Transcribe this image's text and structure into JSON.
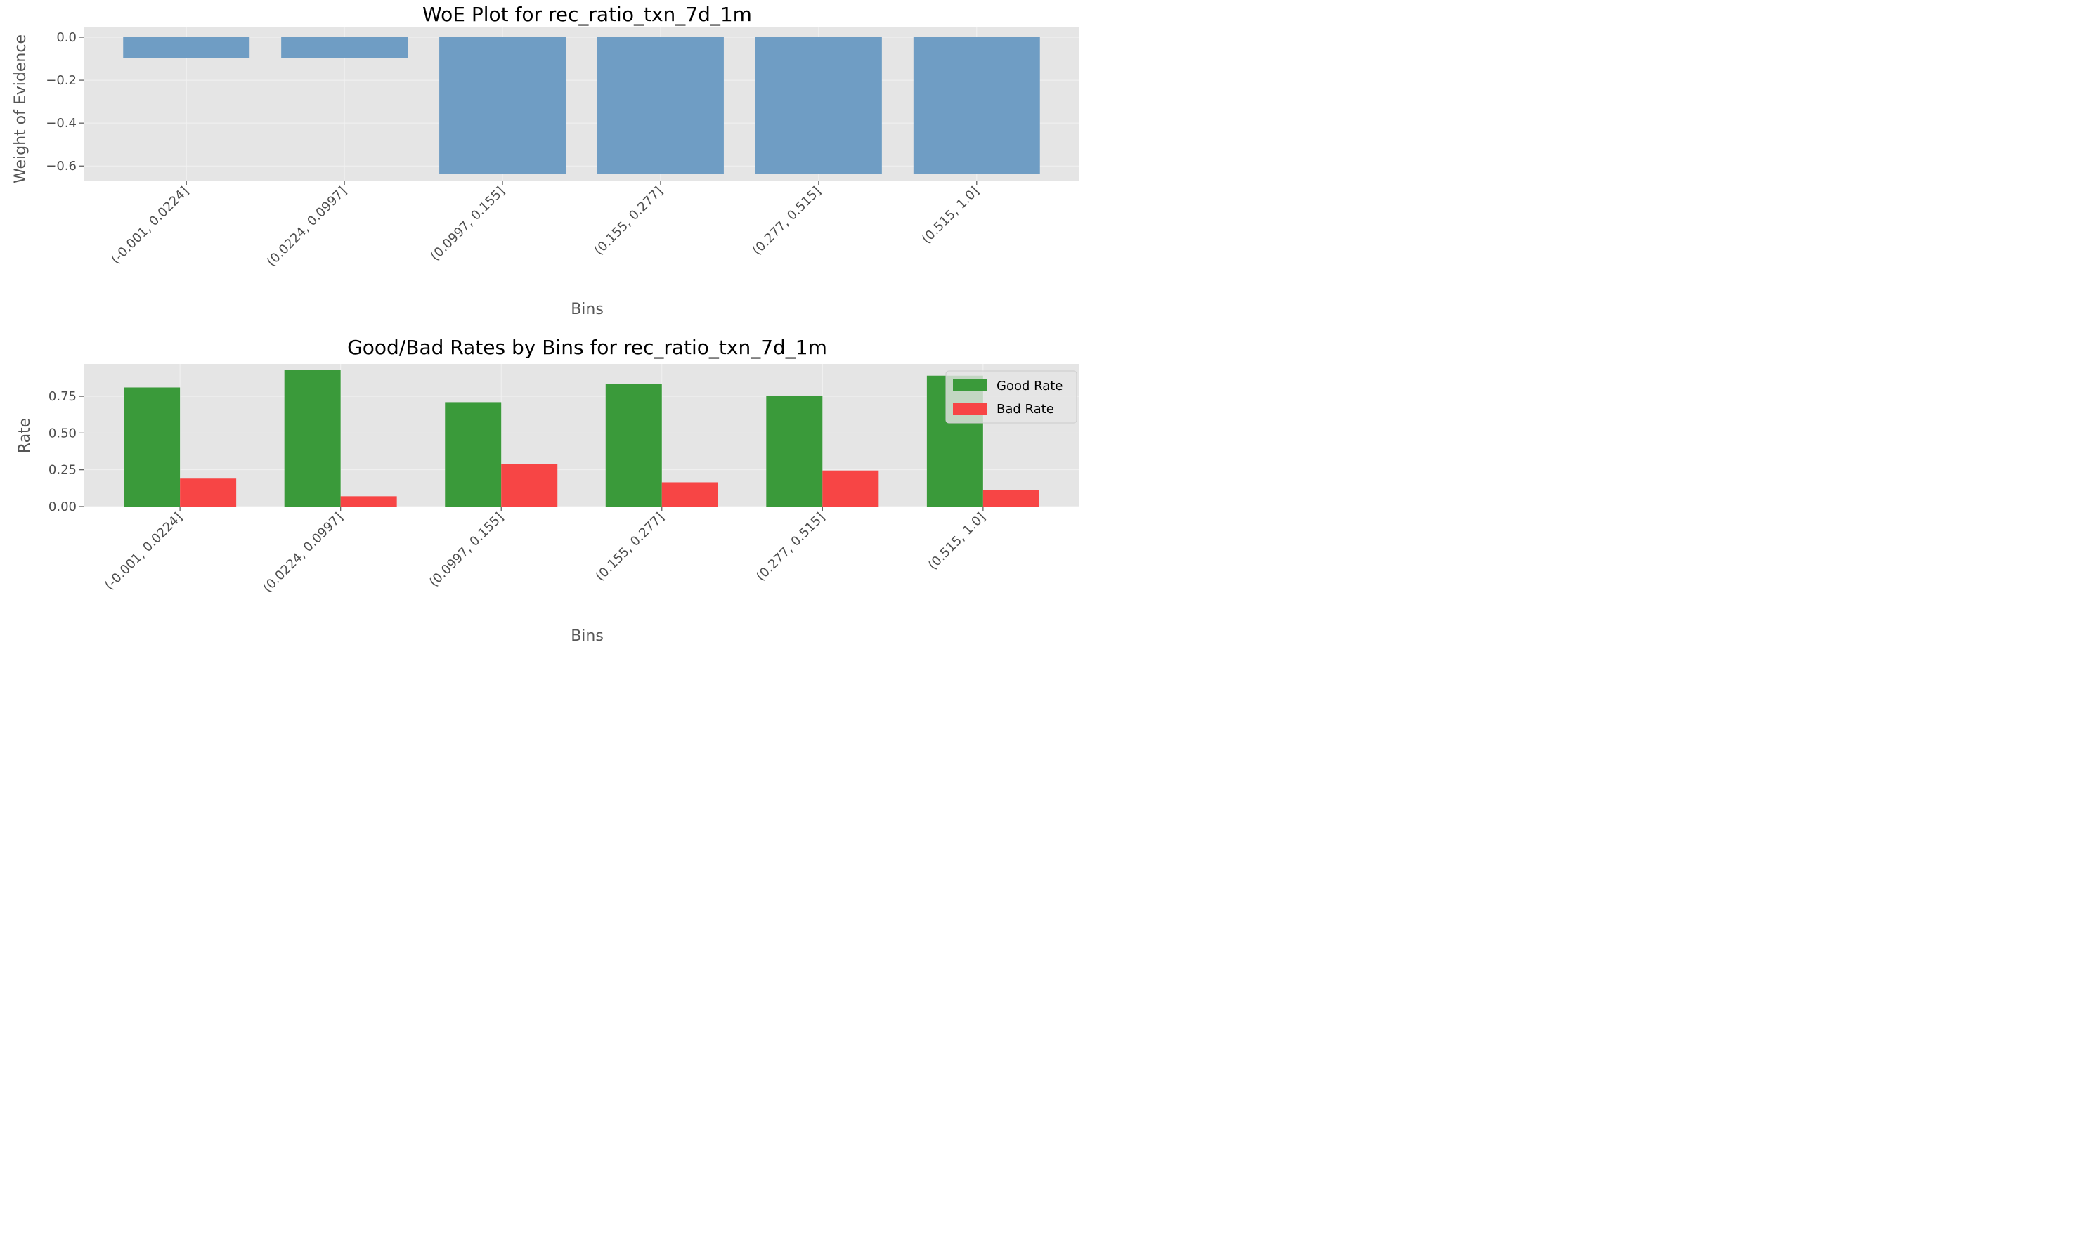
{
  "chart_data": [
    {
      "type": "bar",
      "title": "WoE Plot for rec_ratio_txn_7d_1m",
      "xlabel": "Bins",
      "ylabel": "Weight of Evidence",
      "categories": [
        "(-0.001, 0.0224]",
        "(0.0224, 0.0997]",
        "(0.0997, 0.155]",
        "(0.155, 0.277]",
        "(0.277, 0.515]",
        "(0.515, 1.0]"
      ],
      "values": [
        -0.095,
        -0.095,
        -0.637,
        -0.637,
        -0.637,
        -0.637
      ],
      "ylim": [
        -0.668,
        0.0
      ],
      "yticks": [
        0.0,
        -0.2,
        -0.4,
        -0.6
      ],
      "ytick_labels": [
        "0.0",
        "−0.2",
        "−0.4",
        "−0.6"
      ],
      "color": "#6f9dc4",
      "grid": true
    },
    {
      "type": "bar",
      "title": "Good/Bad Rates by Bins for rec_ratio_txn_7d_1m",
      "xlabel": "Bins",
      "ylabel": "Rate",
      "categories": [
        "(-0.001, 0.0224]",
        "(0.0224, 0.0997]",
        "(0.0997, 0.155]",
        "(0.155, 0.277]",
        "(0.277, 0.515]",
        "(0.515, 1.0]"
      ],
      "series": [
        {
          "name": "Good Rate",
          "values": [
            0.81,
            0.93,
            0.71,
            0.835,
            0.755,
            0.89
          ],
          "color": "#3a9a3a"
        },
        {
          "name": "Bad Rate",
          "values": [
            0.19,
            0.07,
            0.29,
            0.165,
            0.245,
            0.11
          ],
          "color": "#f74545"
        }
      ],
      "ylim": [
        0,
        0.97
      ],
      "yticks": [
        0.0,
        0.25,
        0.5,
        0.75
      ],
      "ytick_labels": [
        "0.00",
        "0.25",
        "0.50",
        "0.75"
      ],
      "legend": "top-right",
      "grid": true
    }
  ],
  "style": {
    "plot_background": "#e5e5e5",
    "grid_color": "#f2f2f2"
  }
}
